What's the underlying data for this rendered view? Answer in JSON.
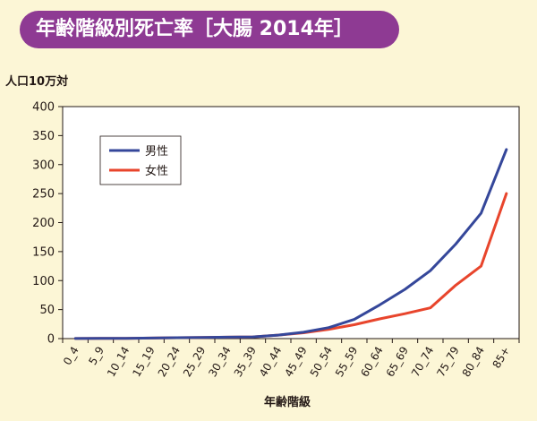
{
  "header": {
    "title": "年齢階級別死亡率［大腸 2014年］"
  },
  "chart_data": {
    "type": "line",
    "title": "年齢階級別死亡率［大腸 2014年］",
    "ylabel": "人口10万対",
    "xlabel": "年齢階級",
    "categories": [
      "0_4",
      "5_9",
      "10_14",
      "15_19",
      "20_24",
      "25_29",
      "30_34",
      "35_39",
      "40_44",
      "45_49",
      "50_54",
      "55_59",
      "60_64",
      "65_69",
      "70_74",
      "75_79",
      "80_84",
      "85+"
    ],
    "yticks": [
      "0",
      "50",
      "100",
      "150",
      "200",
      "250",
      "300",
      "350",
      "400"
    ],
    "ylim": [
      0,
      400
    ],
    "grid": false,
    "legend_position": "top-left",
    "series": [
      {
        "name": "男性",
        "color": "#35479a",
        "values": [
          0.2,
          0.3,
          0.5,
          1,
          1.5,
          2,
          2.5,
          3,
          6,
          11,
          19,
          33,
          58,
          85,
          117,
          163,
          216,
          326
        ]
      },
      {
        "name": "女性",
        "color": "#e8452c",
        "values": [
          0.2,
          0.3,
          0.5,
          1,
          1.5,
          2,
          2.5,
          3,
          6,
          10,
          16,
          24,
          34,
          43,
          53,
          92,
          125,
          250
        ]
      }
    ]
  }
}
